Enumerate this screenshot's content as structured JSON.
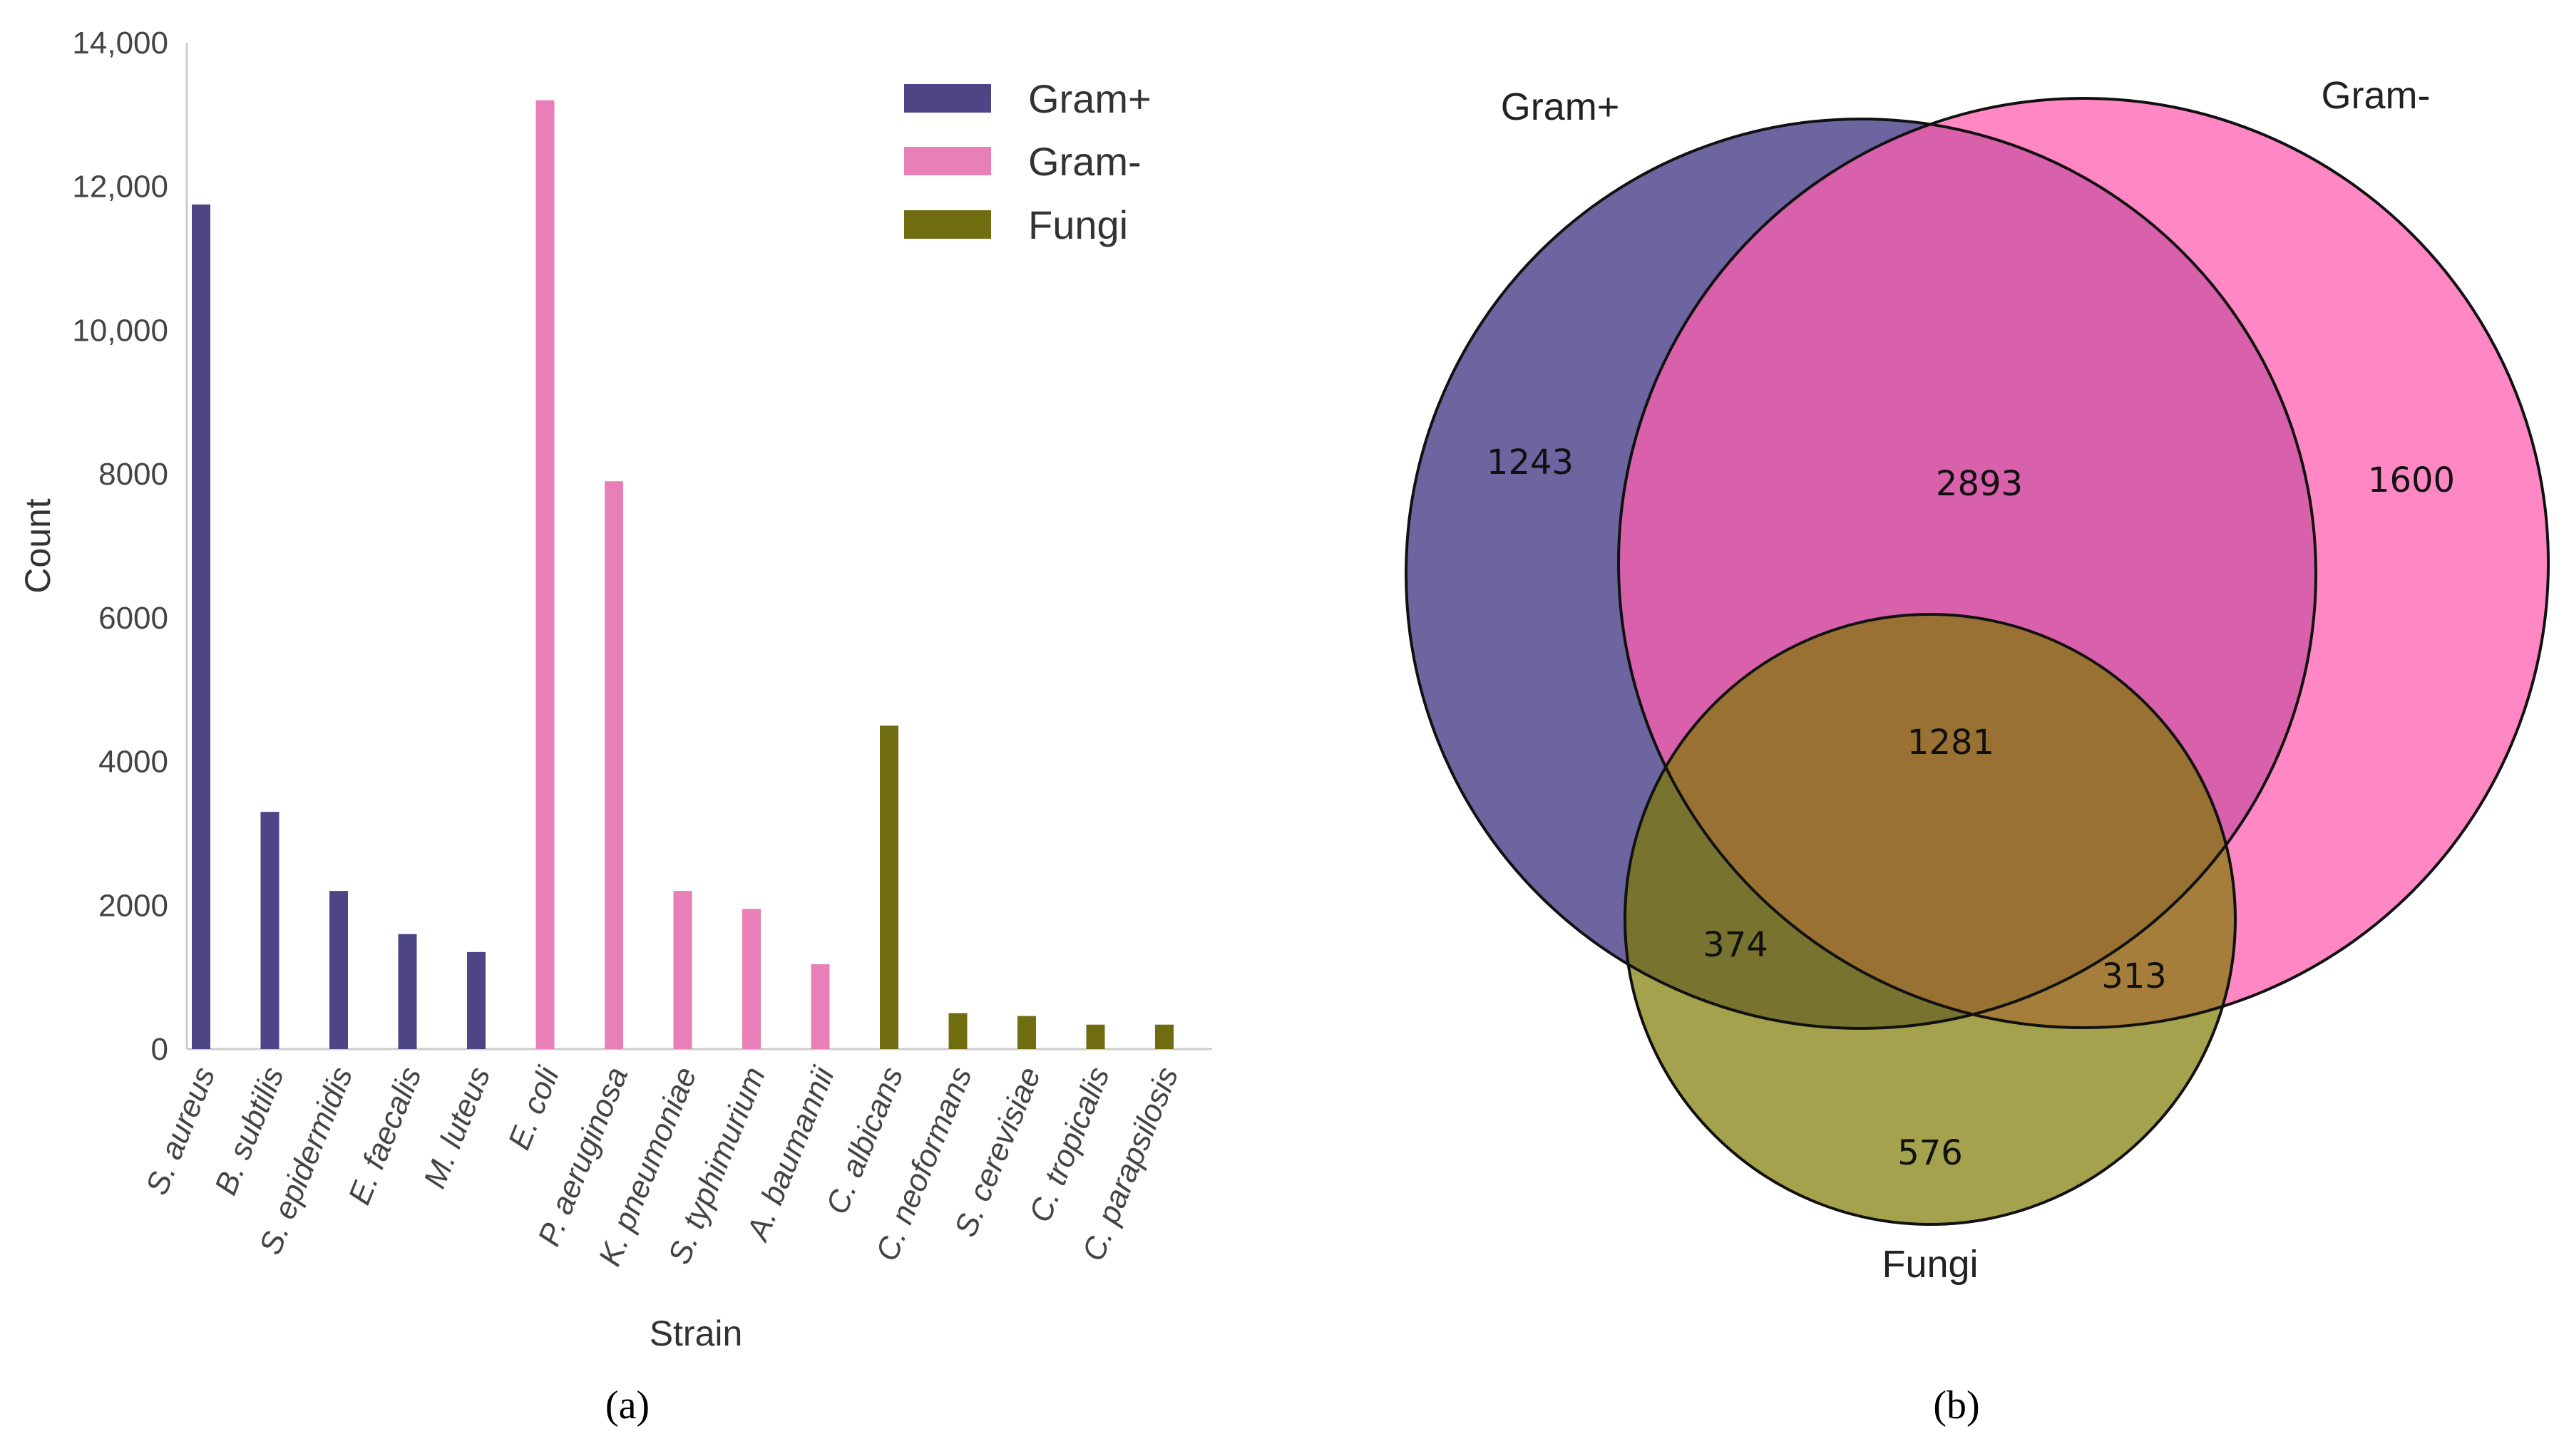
{
  "chart_data": [
    {
      "type": "bar",
      "title": "",
      "xlabel": "Strain",
      "ylabel": "Count",
      "ylim": [
        0,
        14000
      ],
      "yticks": [
        0,
        2000,
        4000,
        6000,
        8000,
        10000,
        12000,
        14000
      ],
      "ytick_labels": [
        "0",
        "2000",
        "4000",
        "6000",
        "8000",
        "10,000",
        "12,000",
        "14,000"
      ],
      "categories": [
        "S. aureus",
        "B. subtilis",
        "S. epidermidis",
        "E. faecalis",
        "M. luteus",
        "E. coli",
        "P. aeruginosa",
        "K. pneumoniae",
        "S. typhimurium",
        "A. baumannii",
        "C. albicans",
        "C. neoformans",
        "S. cerevisiae",
        "C. tropicalis",
        "C. parapsilosis"
      ],
      "series": [
        {
          "name": "Gram+",
          "color": "#4e4587",
          "values": [
            11750,
            3300,
            2200,
            1600,
            1350,
            null,
            null,
            null,
            null,
            null,
            null,
            null,
            null,
            null,
            null
          ]
        },
        {
          "name": "Gram-",
          "color": "#e97fb7",
          "values": [
            null,
            null,
            null,
            null,
            null,
            13200,
            7900,
            2200,
            1950,
            1180,
            null,
            null,
            null,
            null,
            null
          ]
        },
        {
          "name": "Fungi",
          "color": "#6f6d10",
          "values": [
            null,
            null,
            null,
            null,
            null,
            null,
            null,
            null,
            null,
            null,
            4500,
            500,
            460,
            340,
            340
          ]
        }
      ],
      "legend_position": "top-right",
      "panel_label": "(a)"
    },
    {
      "type": "venn",
      "sets": [
        {
          "name": "Gram+",
          "color": "#3a2f7f"
        },
        {
          "name": "Gram-",
          "color": "#ff5fb0"
        },
        {
          "name": "Fungi",
          "color": "#7d7a00"
        }
      ],
      "regions": {
        "gram_pos_only": 1243,
        "gram_neg_only": 1600,
        "fungi_only": 576,
        "gram_pos_gram_neg": 2893,
        "gram_pos_fungi": 374,
        "gram_neg_fungi": 313,
        "all_three": 1281
      },
      "panel_label": "(b)"
    }
  ]
}
